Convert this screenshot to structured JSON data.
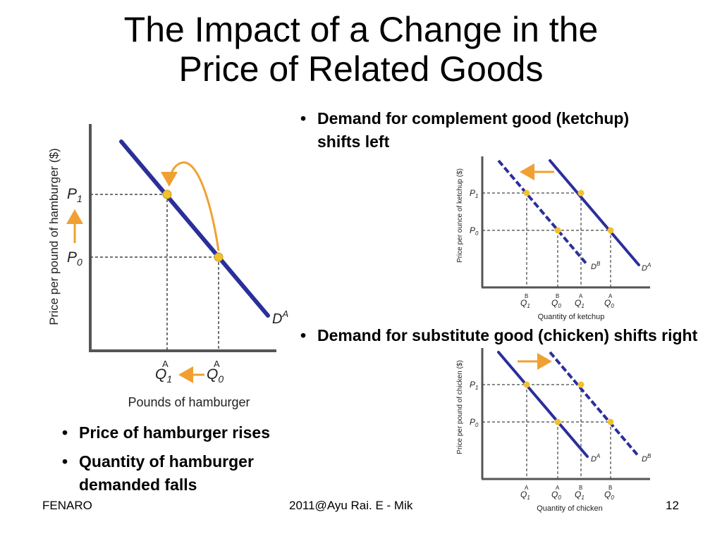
{
  "slide": {
    "title_line1": "The Impact of a Change in the",
    "title_line2": "Price of Related Goods",
    "bullets_top_right": [
      "Demand for complement good (ketchup) shifts left"
    ],
    "bullets_mid_right": [
      "Demand for substitute good (chicken) shifts right"
    ],
    "bullets_bottom_left": [
      "Price of hamburger rises",
      "Quantity of hamburger demanded falls"
    ]
  },
  "footer": {
    "left": "FENARO",
    "center": "2011@Ayu Rai. E - Mik",
    "page_number": "12"
  },
  "diagrams": {
    "hamburger": {
      "ylabel": "Price per pound of hamburger ($)",
      "xlabel": "Pounds of hamburger",
      "p1": "P",
      "p1_sub": "1",
      "p0": "P",
      "p0_sub": "0",
      "q1": "Q",
      "q1_sub": "1",
      "q1_sup": "A",
      "q0": "Q",
      "q0_sub": "0",
      "q0_sup": "A",
      "curve": "D",
      "curve_sup": "A"
    },
    "ketchup": {
      "ylabel": "Price per ounce of ketchup ($)",
      "xlabel": "Quantity of ketchup",
      "p1": "P",
      "p1_sub": "1",
      "p0": "P",
      "p0_sub": "0",
      "qs": [
        {
          "q": "Q",
          "sub": "1",
          "sup": "B"
        },
        {
          "q": "Q",
          "sub": "0",
          "sup": "B"
        },
        {
          "q": "Q",
          "sub": "1",
          "sup": "A"
        },
        {
          "q": "Q",
          "sub": "0",
          "sup": "A"
        }
      ],
      "curve_new": "D",
      "curve_new_sup": "B",
      "curve_old": "D",
      "curve_old_sup": "A"
    },
    "chicken": {
      "ylabel": "Price per pound of chicken ($)",
      "xlabel": "Quantity of chicken",
      "p1": "P",
      "p1_sub": "1",
      "p0": "P",
      "p0_sub": "0",
      "qs": [
        {
          "q": "Q",
          "sub": "1",
          "sup": "A"
        },
        {
          "q": "Q",
          "sub": "0",
          "sup": "A"
        },
        {
          "q": "Q",
          "sub": "1",
          "sup": "B"
        },
        {
          "q": "Q",
          "sub": "0",
          "sup": "B"
        }
      ],
      "curve_old": "D",
      "curve_old_sup": "A",
      "curve_new": "D",
      "curve_new_sup": "B"
    }
  },
  "colors": {
    "curve": "#2b2f9a",
    "point": "#f2c12e",
    "arrow": "#f0a032",
    "guide": "#444444",
    "axis": "#555555"
  }
}
